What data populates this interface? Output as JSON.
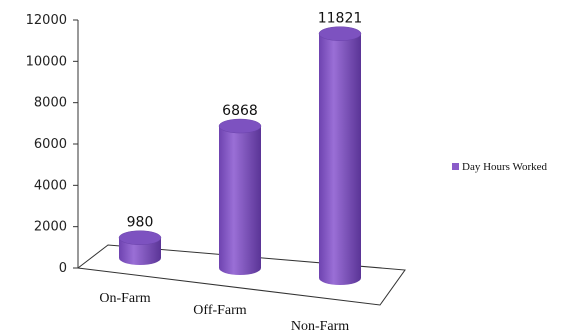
{
  "chart_data": {
    "type": "bar",
    "style": "3d-cylinder",
    "categories": [
      "On-Farm",
      "Off-Farm",
      "Non-Farm"
    ],
    "series": [
      {
        "name": "Day Hours Worked",
        "values": [
          980,
          6868,
          11821
        ],
        "color": "#8a5cc9"
      }
    ],
    "data_labels": [
      "980",
      "6868",
      "11821"
    ],
    "y_ticks": [
      "0",
      "2000",
      "4000",
      "6000",
      "8000",
      "10000",
      "12000"
    ],
    "ylim": [
      0,
      12000
    ],
    "grid": false,
    "legend": {
      "position": "right",
      "entries": [
        "Day Hours Worked"
      ]
    }
  }
}
